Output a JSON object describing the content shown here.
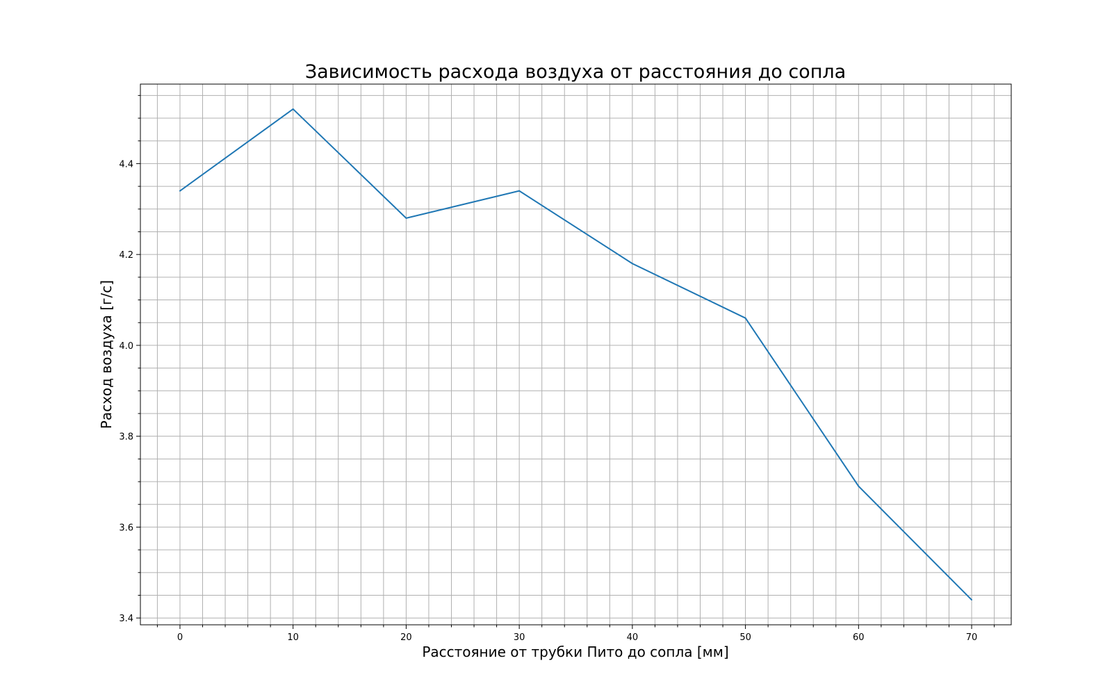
{
  "chart_data": {
    "type": "line",
    "title": "Зависимость расхода воздуха от расстояния до сопла",
    "xlabel": "Расстояние от трубки Пито до сопла [мм]",
    "ylabel": "Расход воздуха [г/с]",
    "x": [
      0,
      10,
      20,
      30,
      40,
      50,
      60,
      70
    ],
    "series": [
      {
        "values": [
          4.34,
          4.52,
          4.28,
          4.34,
          4.18,
          4.06,
          3.69,
          3.44
        ],
        "color": "#1f77b4"
      }
    ],
    "xlim": [
      -3.5,
      73.5
    ],
    "ylim": [
      3.385,
      4.575
    ],
    "xticks": [
      "0",
      "10",
      "20",
      "30",
      "40",
      "50",
      "60",
      "70"
    ],
    "yticks": [
      "3.4",
      "3.6",
      "3.8",
      "4.0",
      "4.2",
      "4.4"
    ],
    "x_minor_step": 2,
    "y_minor_step": 0.05,
    "grid": true,
    "grid_color": "#b0b0b0",
    "legend": false
  }
}
